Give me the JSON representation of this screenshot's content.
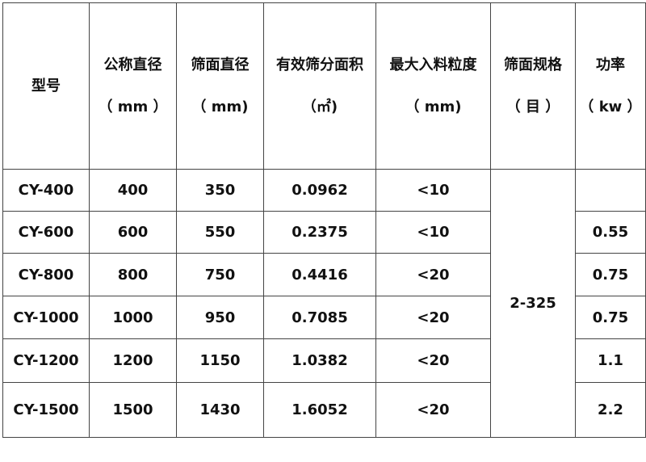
{
  "table": {
    "headers": [
      {
        "line1": "型号",
        "line2": ""
      },
      {
        "line1": "公称直径",
        "line2": "（ mm ）"
      },
      {
        "line1": "筛面直径",
        "line2": "（ mm)"
      },
      {
        "line1": "有效筛分面积",
        "line2": "（㎡)"
      },
      {
        "line1": "最大入料粒度",
        "line2": "（ mm)"
      },
      {
        "line1": "筛面规格",
        "line2": "（ 目 ）"
      },
      {
        "line1": "功率",
        "line2": "（ kw ）"
      }
    ],
    "screen_spec_merged": "2-325",
    "rows": [
      {
        "model": "CY-400",
        "nominal": "400",
        "screen_dia": "350",
        "area": "0.0962",
        "feed": "<10",
        "power": ""
      },
      {
        "model": "CY-600",
        "nominal": "600",
        "screen_dia": "550",
        "area": "0.2375",
        "feed": "<10",
        "power": "0.55"
      },
      {
        "model": "CY-800",
        "nominal": "800",
        "screen_dia": "750",
        "area": "0.4416",
        "feed": "<20",
        "power": "0.75"
      },
      {
        "model": "CY-1000",
        "nominal": "1000",
        "screen_dia": "950",
        "area": "0.7085",
        "feed": "<20",
        "power": "0.75"
      },
      {
        "model": "CY-1200",
        "nominal": "1200",
        "screen_dia": "1150",
        "area": "1.0382",
        "feed": "<20",
        "power": "1.1"
      },
      {
        "model": "CY-1500",
        "nominal": "1500",
        "screen_dia": "1430",
        "area": "1.6052",
        "feed": "<20",
        "power": "2.2"
      }
    ]
  }
}
